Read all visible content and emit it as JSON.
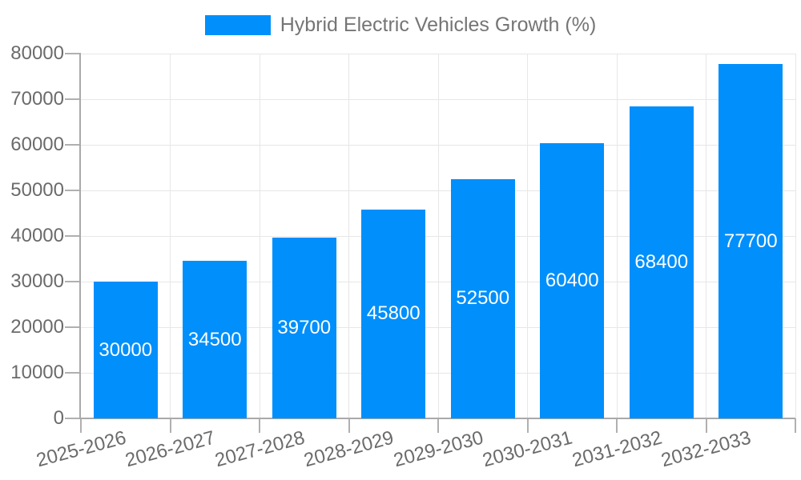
{
  "chart_data": {
    "type": "bar",
    "title": "",
    "legend_label": "Hybrid Electric Vehicles Growth (%)",
    "legend_position": "top",
    "categories": [
      "2025-2026",
      "2026-2027",
      "2027-2028",
      "2028-2029",
      "2029-2030",
      "2030-2031",
      "2031-2032",
      "2032-2033"
    ],
    "values": [
      30000,
      34500,
      39700,
      45800,
      52500,
      60400,
      68400,
      77700
    ],
    "xlabel": "",
    "ylabel": "",
    "ylim": [
      0,
      80000
    ],
    "yticks": [
      0,
      10000,
      20000,
      30000,
      40000,
      50000,
      60000,
      70000,
      80000
    ],
    "grid": "both",
    "x_label_rotation_deg": -15,
    "value_label_position": "inside-center",
    "colors": {
      "bar": "#008FFB",
      "grid_line": "#e7e7e7",
      "axis_line": "#a9a9a9",
      "tick_mark": "#b0b0b0",
      "axis_label_text": "#6b6b6b",
      "legend_text": "#757575",
      "value_label_text": "#ffffff",
      "background": "#ffffff"
    }
  }
}
